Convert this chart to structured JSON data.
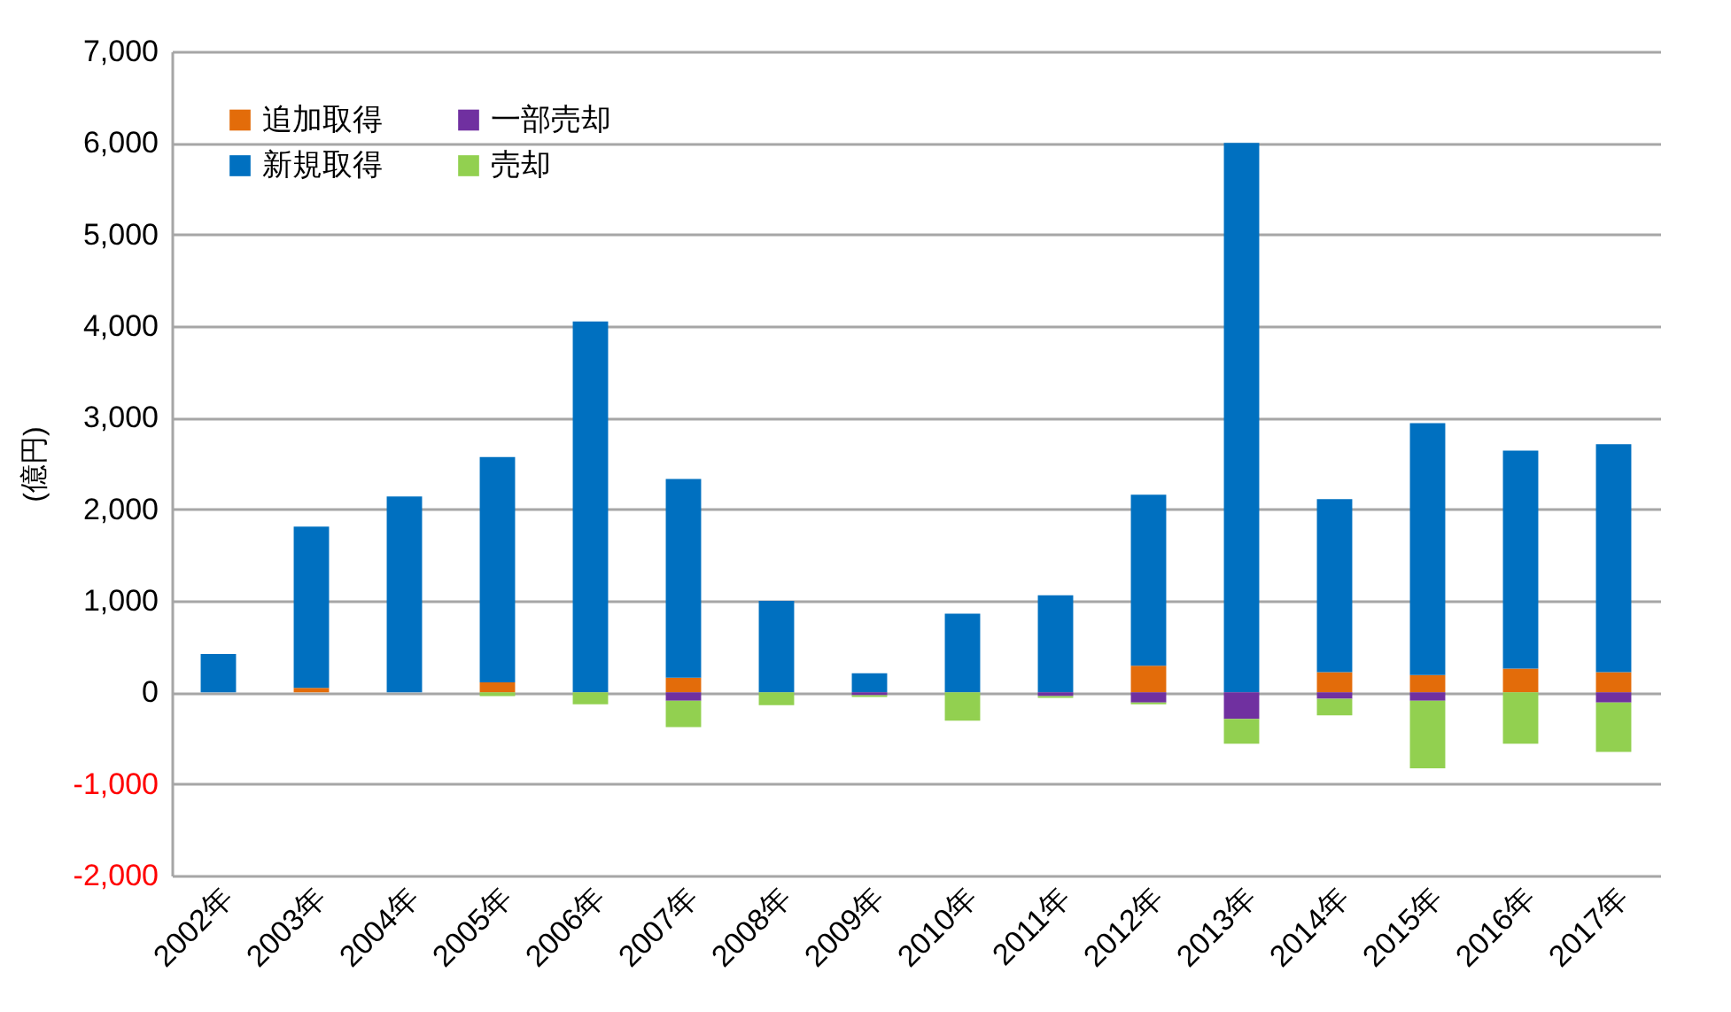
{
  "chart_data": {
    "type": "bar",
    "stacked": true,
    "ylabel": "(億円)",
    "categories": [
      "2002年",
      "2003年",
      "2004年",
      "2005年",
      "2006年",
      "2007年",
      "2008年",
      "2009年",
      "2010年",
      "2011年",
      "2012年",
      "2013年",
      "2014年",
      "2015年",
      "2016年",
      "2017年"
    ],
    "series": [
      {
        "name": "追加取得",
        "color": "#e36c0a",
        "values": [
          null,
          50,
          null,
          110,
          null,
          160,
          null,
          null,
          null,
          null,
          290,
          null,
          220,
          190,
          260,
          220
        ]
      },
      {
        "name": "新規取得",
        "color": "#0070c0",
        "values": [
          420,
          1760,
          2140,
          2460,
          4050,
          2170,
          1000,
          210,
          860,
          1060,
          1870,
          6000,
          1890,
          2750,
          2380,
          2490
        ]
      },
      {
        "name": "一部売却",
        "color": "#7030a0",
        "values": [
          null,
          null,
          null,
          null,
          null,
          -90,
          null,
          -30,
          null,
          -40,
          -110,
          -290,
          -70,
          -90,
          null,
          -110
        ]
      },
      {
        "name": "売却",
        "color": "#92d050",
        "values": [
          null,
          null,
          null,
          -40,
          -130,
          -290,
          -140,
          -20,
          -310,
          -20,
          -20,
          -270,
          -180,
          -740,
          -560,
          -540
        ]
      }
    ],
    "ylim": [
      -2000,
      7000
    ],
    "yticks": [
      {
        "value": -2000,
        "label": "-2,000"
      },
      {
        "value": -1000,
        "label": "-1,000"
      },
      0,
      {
        "value": 1000,
        "label": "1,000"
      },
      {
        "value": 2000,
        "label": "2,000"
      },
      {
        "value": 3000,
        "label": "3,000"
      },
      {
        "value": 4000,
        "label": "4,000"
      },
      {
        "value": 5000,
        "label": "5,000"
      },
      {
        "value": 6000,
        "label": "6,000"
      },
      {
        "value": 7000,
        "label": "7,000"
      }
    ],
    "grid": "y",
    "legend": "top left"
  }
}
